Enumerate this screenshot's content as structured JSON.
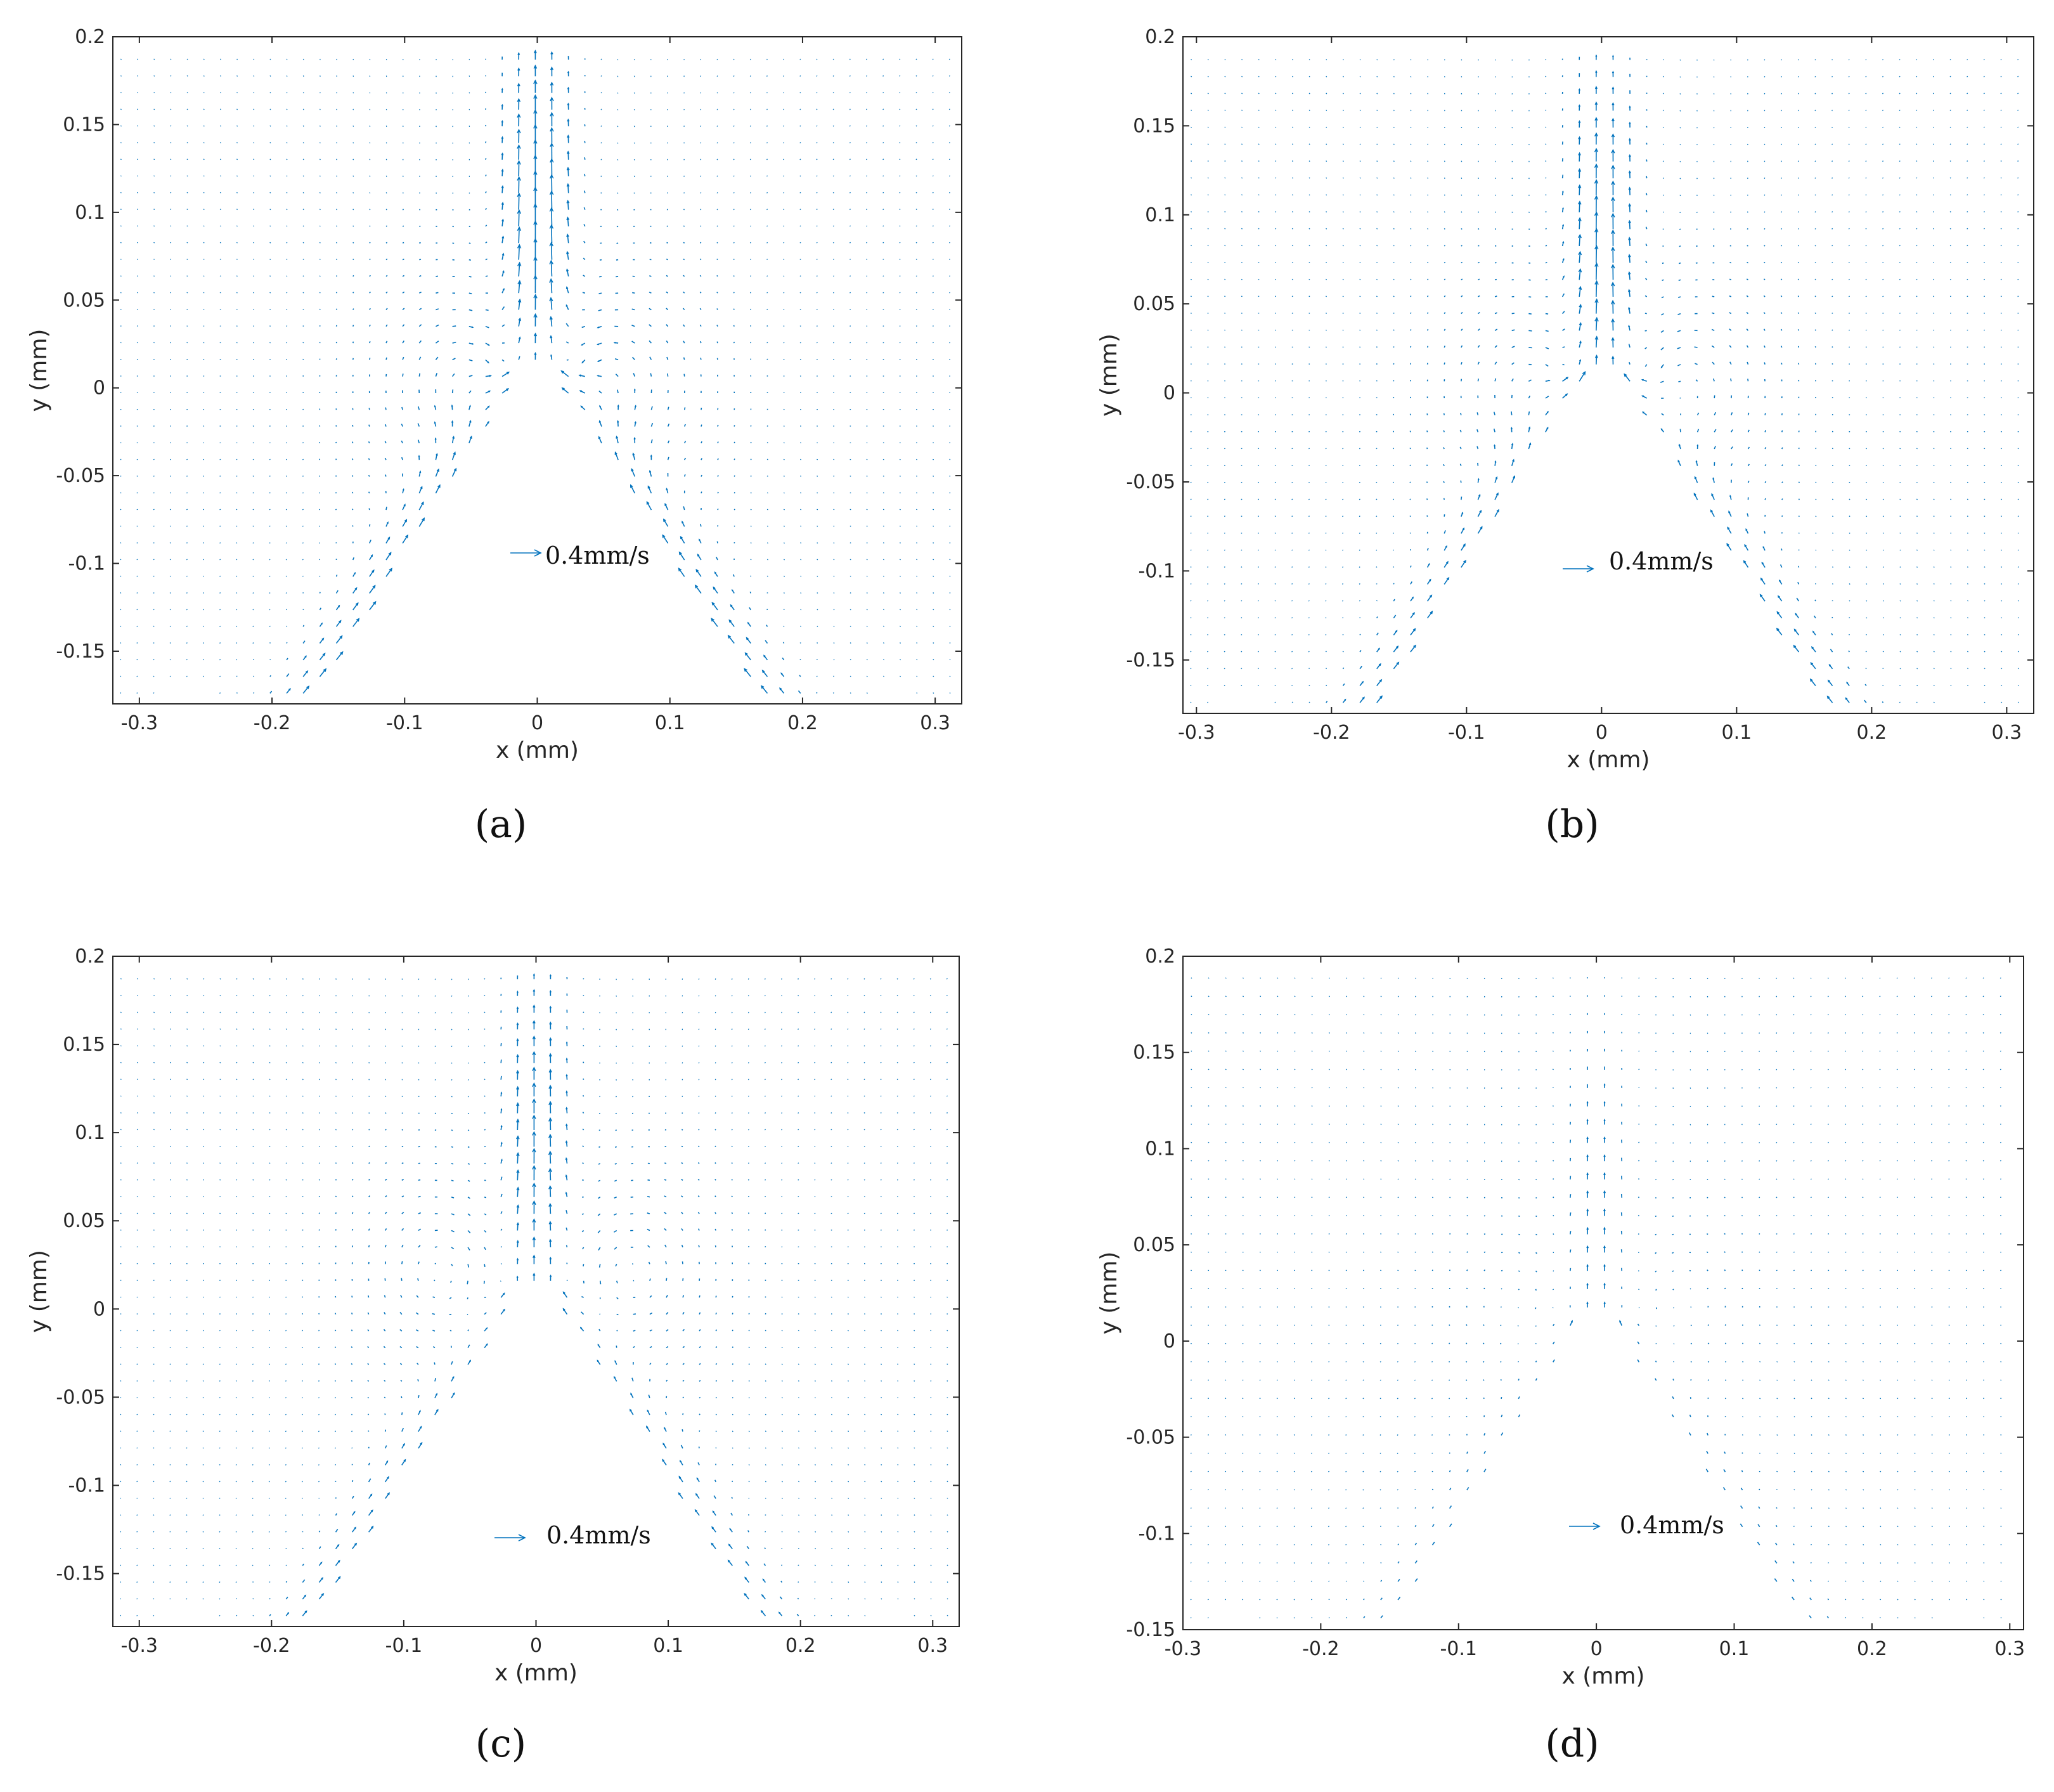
{
  "colors": {
    "arrow": "#0072BD",
    "axis": "#262626"
  },
  "panels": [
    {
      "caption": "(a)",
      "xlabel": "x (mm)",
      "ylabel": "y (mm)",
      "scale_label": "0.4mm/s",
      "x_ticks": [
        "-0.3",
        "-0.2",
        "-0.1",
        "0",
        "0.1",
        "0.2",
        "0.3"
      ],
      "y_ticks": [
        "0.2",
        "0.15",
        "0.1",
        "0.05",
        "0",
        "-0.05",
        "-0.1",
        "-0.15"
      ]
    },
    {
      "caption": "(b)",
      "xlabel": "x (mm)",
      "ylabel": "y (mm)",
      "scale_label": "0.4mm/s",
      "x_ticks": [
        "-0.3",
        "-0.2",
        "-0.1",
        "0",
        "0.1",
        "0.2",
        "0.3"
      ],
      "y_ticks": [
        "0.2",
        "0.15",
        "0.1",
        "0.05",
        "0",
        "-0.05",
        "-0.1",
        "-0.15"
      ]
    },
    {
      "caption": "(c)",
      "xlabel": "x (mm)",
      "ylabel": "y (mm)",
      "scale_label": "0.4mm/s",
      "x_ticks": [
        "-0.3",
        "-0.2",
        "-0.1",
        "0",
        "0.1",
        "0.2",
        "0.3"
      ],
      "y_ticks": [
        "0.2",
        "0.15",
        "0.1",
        "0.05",
        "0",
        "-0.05",
        "-0.1",
        "-0.15"
      ]
    },
    {
      "caption": "(d)",
      "xlabel": "x (mm)",
      "ylabel": "y (mm)",
      "scale_label": "0.4mm/s",
      "x_ticks": [
        "-0.3",
        "-0.2",
        "-0.1",
        "0",
        "0.1",
        "0.2",
        "0.3"
      ],
      "y_ticks": [
        "0.2",
        "0.15",
        "0.1",
        "0.05",
        "0",
        "-0.05",
        "-0.1",
        "-0.15"
      ]
    }
  ],
  "chart_data": [
    {
      "type": "quiver",
      "panel": "(a)",
      "xlabel": "x (mm)",
      "ylabel": "y (mm)",
      "xlim": [
        -0.32,
        0.32
      ],
      "ylim": [
        -0.18,
        0.2
      ],
      "xticks": [
        -0.3,
        -0.2,
        -0.1,
        0,
        0.1,
        0.2,
        0.3
      ],
      "yticks": [
        -0.15,
        -0.1,
        -0.05,
        0,
        0.05,
        0.1,
        0.15,
        0.2
      ],
      "reference_vector": {
        "label": "0.4mm/s",
        "value": 0.4
      },
      "field": {
        "jet_peak_y": 0.09,
        "vortex_centers": [
          [
            -0.05,
            0.0
          ],
          [
            0.05,
            0.0
          ]
        ],
        "relative_magnitude": 1.0,
        "wall_top_y": 0.01,
        "wall_half_width_at_ymin": 0.17
      }
    },
    {
      "type": "quiver",
      "panel": "(b)",
      "xlabel": "x (mm)",
      "ylabel": "y (mm)",
      "xlim": [
        -0.31,
        0.32
      ],
      "ylim": [
        -0.18,
        0.2
      ],
      "xticks": [
        -0.3,
        -0.2,
        -0.1,
        0,
        0.1,
        0.2,
        0.3
      ],
      "yticks": [
        -0.15,
        -0.1,
        -0.05,
        0,
        0.05,
        0.1,
        0.15,
        0.2
      ],
      "reference_vector": {
        "label": "0.4mm/s",
        "value": 0.4
      },
      "field": {
        "jet_peak_y": 0.07,
        "vortex_centers": [
          [
            -0.05,
            0.0
          ],
          [
            0.06,
            0.0
          ]
        ],
        "relative_magnitude": 0.8,
        "wall_top_y": 0.01,
        "wall_half_width_at_ymin": 0.17
      }
    },
    {
      "type": "quiver",
      "panel": "(c)",
      "xlabel": "x (mm)",
      "ylabel": "y (mm)",
      "xlim": [
        -0.32,
        0.32
      ],
      "ylim": [
        -0.18,
        0.2
      ],
      "xticks": [
        -0.3,
        -0.2,
        -0.1,
        0,
        0.1,
        0.2,
        0.3
      ],
      "yticks": [
        -0.15,
        -0.1,
        -0.05,
        0,
        0.05,
        0.1,
        0.15,
        0.2
      ],
      "reference_vector": {
        "label": "0.4mm/s",
        "value": 0.4
      },
      "field": {
        "jet_peak_y": 0.08,
        "vortex_centers": [
          [
            -0.07,
            0.02
          ],
          [
            0.07,
            0.02
          ]
        ],
        "relative_magnitude": 0.7,
        "wall_top_y": 0.01,
        "wall_half_width_at_ymin": 0.17
      }
    },
    {
      "type": "quiver",
      "panel": "(d)",
      "xlabel": "x (mm)",
      "ylabel": "y (mm)",
      "xlim": [
        -0.3,
        0.31
      ],
      "ylim": [
        -0.15,
        0.2
      ],
      "xticks": [
        -0.3,
        -0.2,
        -0.1,
        0,
        0.1,
        0.2,
        0.3
      ],
      "yticks": [
        -0.15,
        -0.1,
        -0.05,
        0,
        0.05,
        0.1,
        0.15,
        0.2
      ],
      "reference_vector": {
        "label": "0.4mm/s",
        "value": 0.4
      },
      "field": {
        "jet_peak_y": 0.05,
        "vortex_centers": [
          [
            -0.06,
            0.02
          ],
          [
            0.06,
            0.02
          ]
        ],
        "relative_magnitude": 0.35,
        "wall_top_y": 0.01,
        "wall_half_width_at_ymin": 0.15
      }
    }
  ]
}
